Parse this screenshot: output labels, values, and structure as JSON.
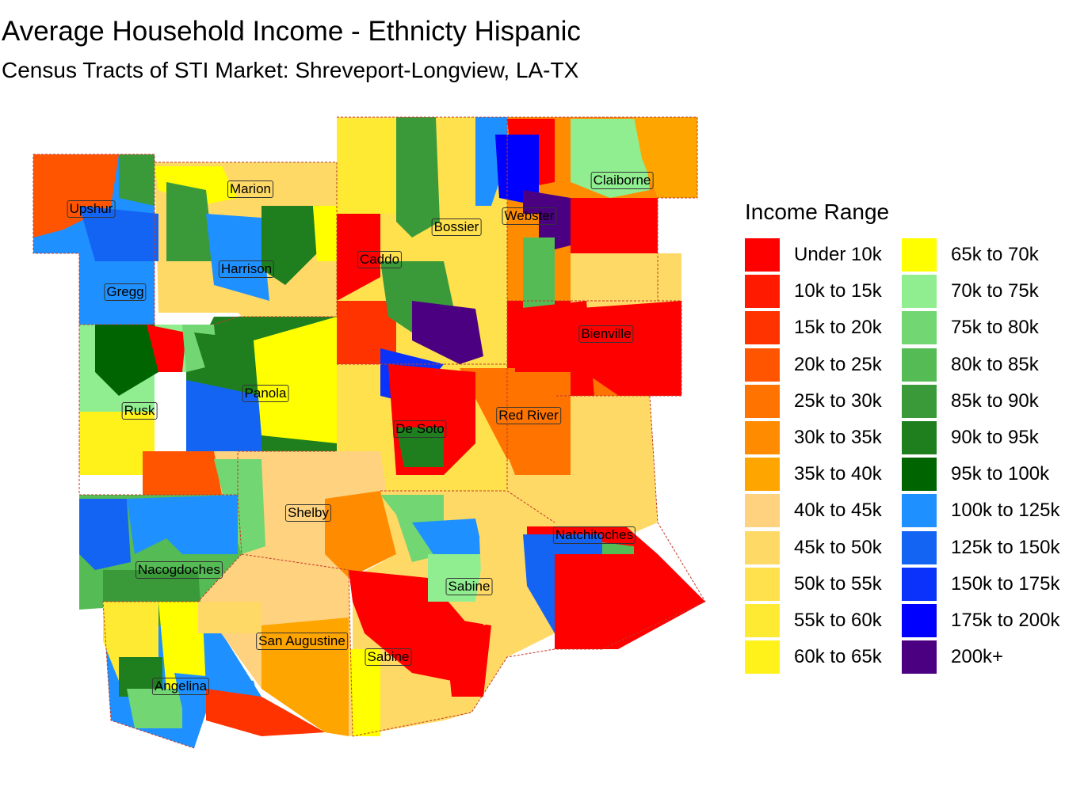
{
  "title": "Average Household Income - Ethnicty Hispanic",
  "subtitle": "Census Tracts of STI Market: Shreveport-Longview, LA-TX",
  "legend": {
    "title": "Income Range",
    "items": [
      {
        "label": "Under 10k",
        "color": "#ff0000"
      },
      {
        "label": "10k to 15k",
        "color": "#ff1a00"
      },
      {
        "label": "15k to 20k",
        "color": "#ff3300"
      },
      {
        "label": "20k to 25k",
        "color": "#ff5500"
      },
      {
        "label": "25k to 30k",
        "color": "#ff7400"
      },
      {
        "label": "30k to 35k",
        "color": "#ff8c00"
      },
      {
        "label": "35k to 40k",
        "color": "#ffa500"
      },
      {
        "label": "40k to 45k",
        "color": "#ffd27f"
      },
      {
        "label": "45k to 50k",
        "color": "#ffd966"
      },
      {
        "label": "50k to 55k",
        "color": "#ffe14d"
      },
      {
        "label": "55k to 60k",
        "color": "#ffea33"
      },
      {
        "label": "60k to 65k",
        "color": "#fff21a"
      },
      {
        "label": "65k to 70k",
        "color": "#ffff00"
      },
      {
        "label": "70k to 75k",
        "color": "#90ee90"
      },
      {
        "label": "75k to 80k",
        "color": "#72d672"
      },
      {
        "label": "80k to 85k",
        "color": "#55bb55"
      },
      {
        "label": "85k to 90k",
        "color": "#3a9a3a"
      },
      {
        "label": "90k to 95k",
        "color": "#1f7f1f"
      },
      {
        "label": "95k to 100k",
        "color": "#006400"
      },
      {
        "label": "100k to 125k",
        "color": "#1e90ff"
      },
      {
        "label": "125k to 150k",
        "color": "#1464f4"
      },
      {
        "label": "150k to 175k",
        "color": "#0a32fa"
      },
      {
        "label": "175k to 200k",
        "color": "#0000ff"
      },
      {
        "label": "200k+",
        "color": "#4b0082"
      }
    ]
  },
  "counties": [
    {
      "name": "Upshur"
    },
    {
      "name": "Marion"
    },
    {
      "name": "Claiborne"
    },
    {
      "name": "Bossier"
    },
    {
      "name": "Webster"
    },
    {
      "name": "Caddo"
    },
    {
      "name": "Harrison"
    },
    {
      "name": "Gregg"
    },
    {
      "name": "Bienville"
    },
    {
      "name": "Panola"
    },
    {
      "name": "Rusk"
    },
    {
      "name": "Red River"
    },
    {
      "name": "De Soto"
    },
    {
      "name": "Shelby"
    },
    {
      "name": "Natchitoches"
    },
    {
      "name": "Nacogdoches"
    },
    {
      "name": "Sabine"
    },
    {
      "name": "San Augustine"
    },
    {
      "name": "Sabine"
    },
    {
      "name": "Angelina"
    }
  ]
}
